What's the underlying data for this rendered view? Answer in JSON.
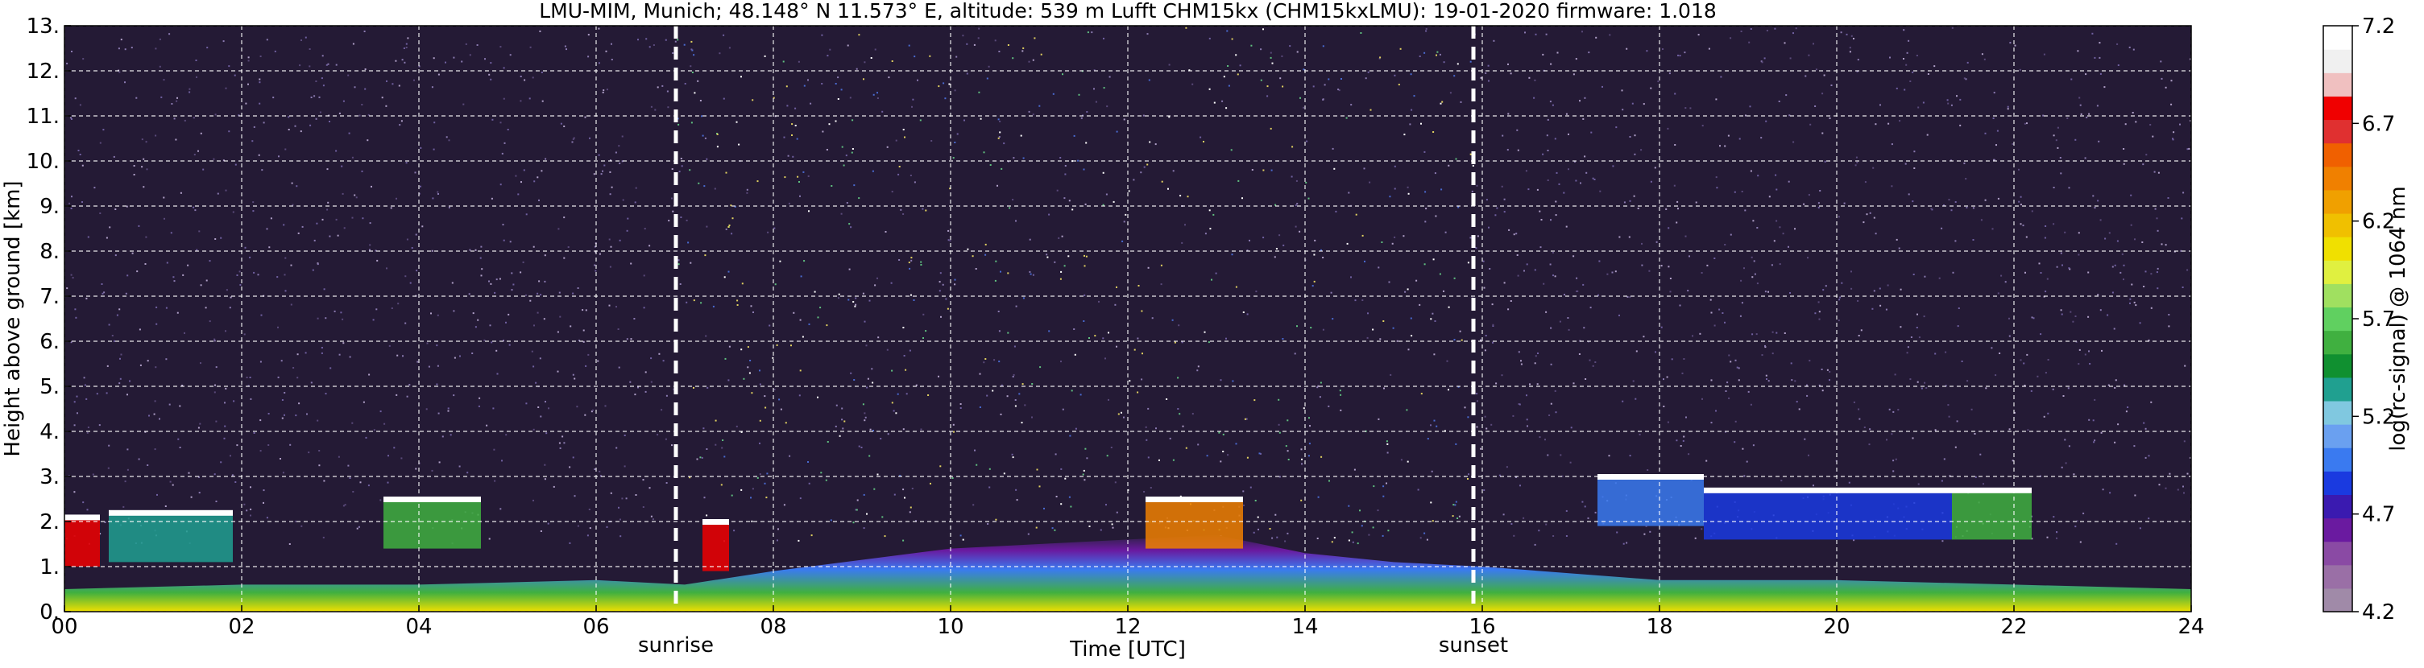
{
  "chart_data": {
    "type": "heatmap",
    "title": "LMU-MIM, Munich; 48.148° N 11.573° E, altitude: 539 m    Lufft CHM15kx (CHM15kxLMU): 19-01-2020    firmware: 1.018",
    "xlabel": "Time [UTC]",
    "ylabel": "Height above ground [km]",
    "xlim": [
      0,
      24
    ],
    "ylim": [
      0,
      13
    ],
    "x_ticks": [
      0,
      2,
      4,
      6,
      8,
      10,
      12,
      14,
      16,
      18,
      20,
      22,
      24
    ],
    "x_tick_labels": [
      "00",
      "02",
      "04",
      "06",
      "08",
      "10",
      "12",
      "14",
      "16",
      "18",
      "20",
      "22",
      "24"
    ],
    "y_ticks": [
      0,
      1,
      2,
      3,
      4,
      5,
      6,
      7,
      8,
      9,
      10,
      11,
      12,
      13
    ],
    "y_tick_labels": [
      "0.",
      "1.",
      "2.",
      "3.",
      "4.",
      "5.",
      "6.",
      "7.",
      "8.",
      "9.",
      "10.",
      "11.",
      "12.",
      "13."
    ],
    "grid": true,
    "markers": [
      {
        "label": "sunrise",
        "x": 6.9
      },
      {
        "label": "sunset",
        "x": 15.9
      }
    ],
    "colorbar": {
      "label": "log(rc-signal) @ 1064 nm",
      "range": [
        4.2,
        7.2
      ],
      "ticks": [
        4.2,
        4.7,
        5.2,
        5.7,
        6.2,
        6.7,
        7.2
      ],
      "tick_labels": [
        "4.2",
        "4.7",
        "5.2",
        "5.7",
        "6.2",
        "6.7",
        "7.2"
      ],
      "colors": [
        "#a08aa8",
        "#9a6fa6",
        "#8a4aa4",
        "#6a1aa0",
        "#3a1ab0",
        "#1a3ae0",
        "#3a7af0",
        "#6aa0f0",
        "#80c8e0",
        "#20a090",
        "#109030",
        "#40b040",
        "#60d060",
        "#a0e060",
        "#e0f040",
        "#f0e000",
        "#f0c000",
        "#f0a000",
        "#f08000",
        "#f06000",
        "#e03030",
        "#f00000",
        "#f0c0c0",
        "#f0f0f0",
        "#ffffff"
      ]
    },
    "background_signal": "noise",
    "cloud_layers": [
      {
        "x": [
          0.0,
          0.4
        ],
        "top_km": 2.1,
        "level": 6.8
      },
      {
        "x": [
          0.5,
          1.9
        ],
        "top_km": 2.2,
        "level": 5.3
      },
      {
        "x": [
          3.6,
          4.7
        ],
        "top_km": 2.5,
        "level": 5.6
      },
      {
        "x": [
          7.2,
          7.5
        ],
        "top_km": 2.0,
        "level": 6.8
      },
      {
        "x": [
          12.2,
          13.3
        ],
        "top_km": 2.5,
        "level": 6.4
      },
      {
        "x": [
          17.3,
          18.5
        ],
        "top_km": 3.0,
        "level": 5.0
      },
      {
        "x": [
          18.5,
          21.3
        ],
        "top_km": 2.7,
        "level": 4.9
      },
      {
        "x": [
          21.3,
          22.2
        ],
        "top_km": 2.7,
        "level": 5.6
      }
    ],
    "boundary_layer_top_km": [
      [
        0,
        0.5
      ],
      [
        2,
        0.6
      ],
      [
        4,
        0.6
      ],
      [
        6,
        0.7
      ],
      [
        7,
        0.6
      ],
      [
        8,
        0.9
      ],
      [
        10,
        1.4
      ],
      [
        12,
        1.6
      ],
      [
        13,
        1.7
      ],
      [
        14,
        1.3
      ],
      [
        15,
        1.1
      ],
      [
        16,
        1.0
      ],
      [
        18,
        0.7
      ],
      [
        20,
        0.7
      ],
      [
        22,
        0.6
      ],
      [
        24,
        0.5
      ]
    ]
  }
}
